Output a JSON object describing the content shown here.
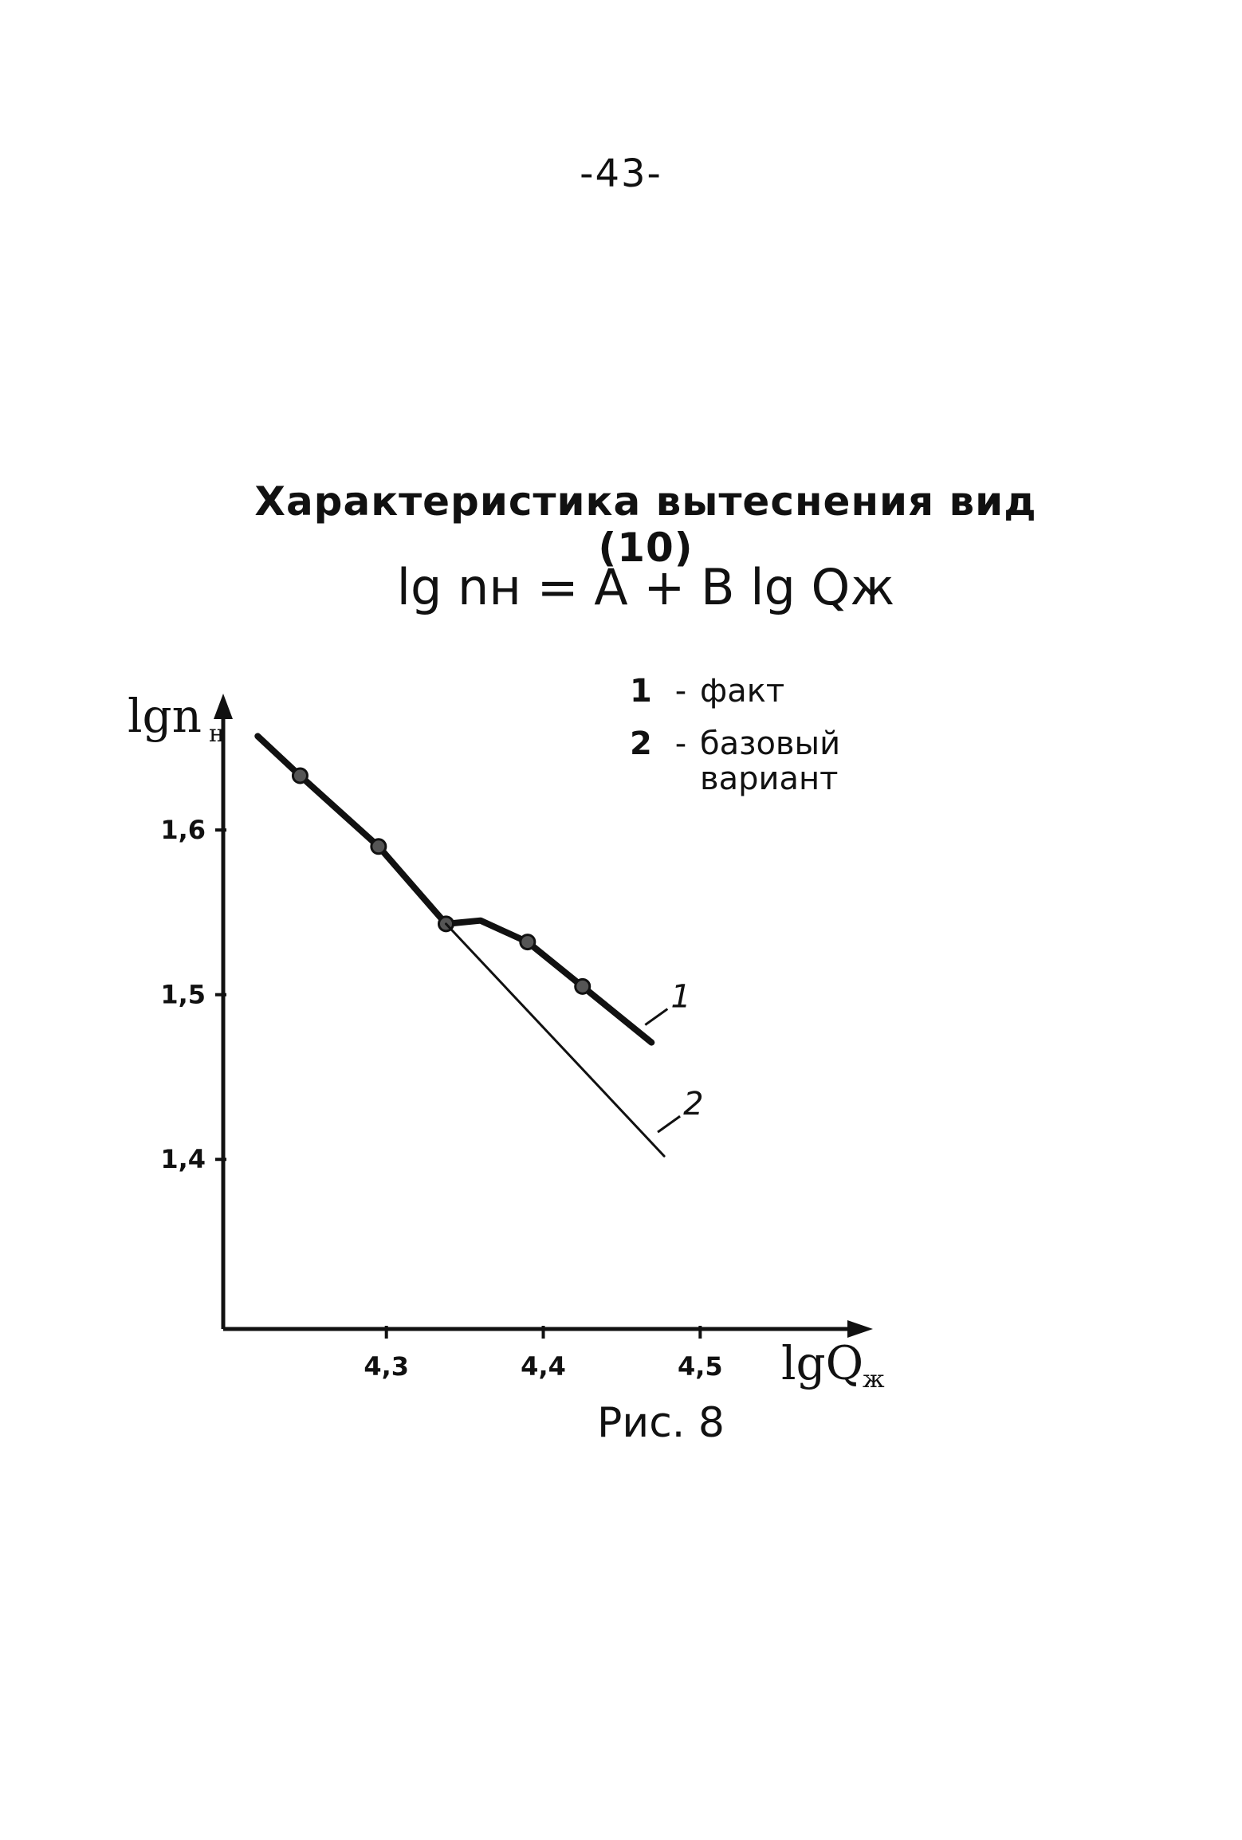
{
  "page": {
    "number": "-43-"
  },
  "figure": {
    "title": "Характеристика вытеснения  вид (10)",
    "formula": "lg nн = A + B lg Qж",
    "caption": "Рис. 8"
  },
  "legend": {
    "items": [
      {
        "num": "1",
        "dash": "-",
        "label": "факт"
      },
      {
        "num": "2",
        "dash": "-",
        "label": "базовый вариант"
      }
    ]
  },
  "chart_data": {
    "type": "line",
    "xlabel": "lgQж",
    "xlabel_main": "lgQ",
    "xlabel_sub": "ж",
    "ylabel": "lgnн",
    "ylabel_main": "lgn",
    "ylabel_sub": "н",
    "x_ticks": [
      4.3,
      4.4,
      4.5
    ],
    "x_tick_labels": [
      "4,3",
      "4,4",
      "4,5"
    ],
    "y_ticks": [
      1.4,
      1.5,
      1.6
    ],
    "y_tick_labels": [
      "1,4",
      "1,5",
      "1,6"
    ],
    "xlim": [
      4.196,
      4.605
    ],
    "ylim": [
      1.297,
      1.678
    ],
    "grid": false,
    "legend_position": "top-right",
    "series": [
      {
        "name": "факт",
        "tag": "1",
        "color": "#111111",
        "width": 8,
        "line": [
          [
            4.218,
            1.657
          ],
          [
            4.245,
            1.633
          ],
          [
            4.295,
            1.59
          ],
          [
            4.338,
            1.543
          ],
          [
            4.36,
            1.545
          ],
          [
            4.39,
            1.532
          ],
          [
            4.425,
            1.505
          ],
          [
            4.469,
            1.471
          ]
        ],
        "markers": [
          [
            4.245,
            1.633
          ],
          [
            4.295,
            1.59
          ],
          [
            4.338,
            1.543
          ],
          [
            4.39,
            1.532
          ],
          [
            4.425,
            1.505
          ]
        ]
      },
      {
        "name": "базовый вариант",
        "tag": "2",
        "color": "#111111",
        "width": 3,
        "line": [
          [
            4.338,
            1.543
          ],
          [
            4.477,
            1.402
          ]
        ],
        "markers": []
      }
    ]
  }
}
